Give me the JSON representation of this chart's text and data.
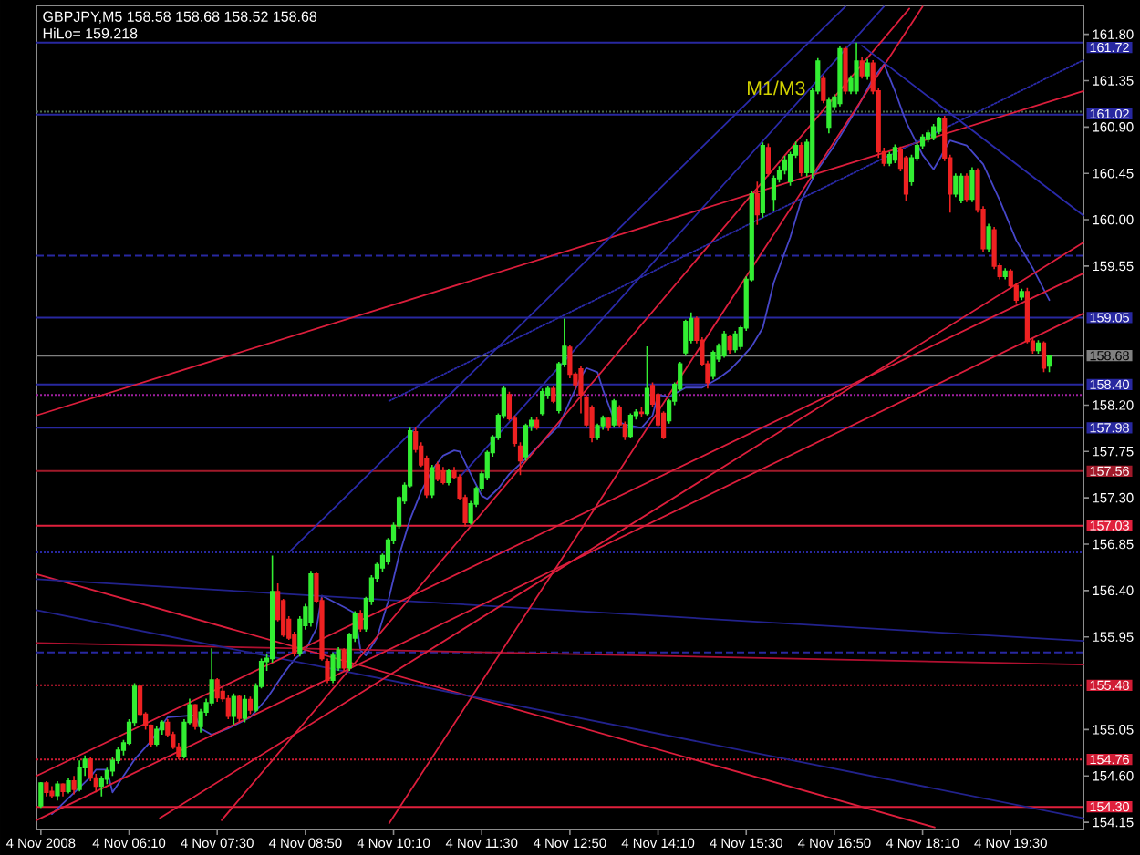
{
  "chart_data": {
    "type": "candlestick",
    "title": "GBPJPY,M5 158.58 158.68 158.52 158.68",
    "subtitle": "HiLo= 159.218",
    "annotations": [
      {
        "text": "M1/M3",
        "x": "2008-11-04T15:57",
        "y": 161.28
      }
    ],
    "xlim": [
      "2008-11-04T04:46",
      "2008-11-04T20:36"
    ],
    "ylim": [
      154.08,
      162.08
    ],
    "xticks": [
      {
        "value": "2008-11-04T04:50",
        "label": "4 Nov 2008"
      },
      {
        "value": "2008-11-04T06:10",
        "label": "4 Nov 06:10"
      },
      {
        "value": "2008-11-04T07:30",
        "label": "4 Nov 07:30"
      },
      {
        "value": "2008-11-04T08:50",
        "label": "4 Nov 08:50"
      },
      {
        "value": "2008-11-04T10:10",
        "label": "4 Nov 10:10"
      },
      {
        "value": "2008-11-04T11:30",
        "label": "4 Nov 11:30"
      },
      {
        "value": "2008-11-04T12:50",
        "label": "4 Nov 12:50"
      },
      {
        "value": "2008-11-04T14:10",
        "label": "4 Nov 14:10"
      },
      {
        "value": "2008-11-04T15:30",
        "label": "4 Nov 15:30"
      },
      {
        "value": "2008-11-04T16:50",
        "label": "4 Nov 16:50"
      },
      {
        "value": "2008-11-04T18:10",
        "label": "4 Nov 18:10"
      },
      {
        "value": "2008-11-04T19:30",
        "label": "4 Nov 19:30"
      }
    ],
    "yticks": [
      {
        "value": 161.8,
        "label": "161.80"
      },
      161.35,
      {
        "value": 160.9,
        "label": "160.90"
      },
      160.45,
      {
        "value": 160.0,
        "label": "160.00"
      },
      159.55,
      {
        "value": 158.2,
        "label": "158.20"
      },
      157.75,
      {
        "value": 157.3,
        "label": "157.30"
      },
      156.85,
      {
        "value": 156.4,
        "label": "156.40"
      },
      155.95,
      155.05,
      {
        "value": 154.6,
        "label": "154.60"
      },
      154.15
    ],
    "x": [
      "2008-11-04T04:50",
      "2008-11-04T04:55",
      "2008-11-04T05:00",
      "2008-11-04T05:05",
      "2008-11-04T05:10",
      "2008-11-04T05:15",
      "2008-11-04T05:20",
      "2008-11-04T05:25",
      "2008-11-04T05:30",
      "2008-11-04T05:35",
      "2008-11-04T05:40",
      "2008-11-04T05:45",
      "2008-11-04T05:50",
      "2008-11-04T05:55",
      "2008-11-04T06:00",
      "2008-11-04T06:05",
      "2008-11-04T06:10",
      "2008-11-04T06:15",
      "2008-11-04T06:20",
      "2008-11-04T06:25",
      "2008-11-04T06:30",
      "2008-11-04T06:35",
      "2008-11-04T06:40",
      "2008-11-04T06:45",
      "2008-11-04T06:50",
      "2008-11-04T06:55",
      "2008-11-04T07:00",
      "2008-11-04T07:05",
      "2008-11-04T07:10",
      "2008-11-04T07:15",
      "2008-11-04T07:20",
      "2008-11-04T07:25",
      "2008-11-04T07:30",
      "2008-11-04T07:35",
      "2008-11-04T07:40",
      "2008-11-04T07:45",
      "2008-11-04T07:50",
      "2008-11-04T07:55",
      "2008-11-04T08:00",
      "2008-11-04T08:05",
      "2008-11-04T08:10",
      "2008-11-04T08:15",
      "2008-11-04T08:20",
      "2008-11-04T08:25",
      "2008-11-04T08:30",
      "2008-11-04T08:35",
      "2008-11-04T08:40",
      "2008-11-04T08:45",
      "2008-11-04T08:50",
      "2008-11-04T08:55",
      "2008-11-04T09:00",
      "2008-11-04T09:05",
      "2008-11-04T09:10",
      "2008-11-04T09:15",
      "2008-11-04T09:20",
      "2008-11-04T09:25",
      "2008-11-04T09:30",
      "2008-11-04T09:35",
      "2008-11-04T09:40",
      "2008-11-04T09:45",
      "2008-11-04T09:50",
      "2008-11-04T09:55",
      "2008-11-04T10:00",
      "2008-11-04T10:05",
      "2008-11-04T10:10",
      "2008-11-04T10:15",
      "2008-11-04T10:20",
      "2008-11-04T10:25",
      "2008-11-04T10:30",
      "2008-11-04T10:35",
      "2008-11-04T10:40",
      "2008-11-04T10:45",
      "2008-11-04T10:50",
      "2008-11-04T10:55",
      "2008-11-04T11:00",
      "2008-11-04T11:05",
      "2008-11-04T11:10",
      "2008-11-04T11:15",
      "2008-11-04T11:20",
      "2008-11-04T11:25",
      "2008-11-04T11:30",
      "2008-11-04T11:35",
      "2008-11-04T11:40",
      "2008-11-04T11:45",
      "2008-11-04T11:50",
      "2008-11-04T11:55",
      "2008-11-04T12:00",
      "2008-11-04T12:05",
      "2008-11-04T12:10",
      "2008-11-04T12:15",
      "2008-11-04T12:20",
      "2008-11-04T12:25",
      "2008-11-04T12:30",
      "2008-11-04T12:35",
      "2008-11-04T12:40",
      "2008-11-04T12:45",
      "2008-11-04T12:50",
      "2008-11-04T12:55",
      "2008-11-04T13:00",
      "2008-11-04T13:05",
      "2008-11-04T13:10",
      "2008-11-04T13:15",
      "2008-11-04T13:20",
      "2008-11-04T13:25",
      "2008-11-04T13:30",
      "2008-11-04T13:35",
      "2008-11-04T13:40",
      "2008-11-04T13:45",
      "2008-11-04T13:50",
      "2008-11-04T13:55",
      "2008-11-04T14:00",
      "2008-11-04T14:05",
      "2008-11-04T14:10",
      "2008-11-04T14:15",
      "2008-11-04T14:20",
      "2008-11-04T14:25",
      "2008-11-04T14:30",
      "2008-11-04T14:35",
      "2008-11-04T14:40",
      "2008-11-04T14:45",
      "2008-11-04T14:50",
      "2008-11-04T14:55",
      "2008-11-04T15:00",
      "2008-11-04T15:05",
      "2008-11-04T15:10",
      "2008-11-04T15:15",
      "2008-11-04T15:20",
      "2008-11-04T15:25",
      "2008-11-04T15:30",
      "2008-11-04T15:35",
      "2008-11-04T15:40",
      "2008-11-04T15:45",
      "2008-11-04T15:50",
      "2008-11-04T15:55",
      "2008-11-04T16:00",
      "2008-11-04T16:05",
      "2008-11-04T16:10",
      "2008-11-04T16:15",
      "2008-11-04T16:20",
      "2008-11-04T16:25",
      "2008-11-04T16:30",
      "2008-11-04T16:35",
      "2008-11-04T16:40",
      "2008-11-04T16:45",
      "2008-11-04T16:50",
      "2008-11-04T16:55",
      "2008-11-04T17:00",
      "2008-11-04T17:05",
      "2008-11-04T17:10",
      "2008-11-04T17:15",
      "2008-11-04T17:20",
      "2008-11-04T17:25",
      "2008-11-04T17:30",
      "2008-11-04T17:35",
      "2008-11-04T17:40",
      "2008-11-04T17:45",
      "2008-11-04T17:50",
      "2008-11-04T17:55",
      "2008-11-04T18:00",
      "2008-11-04T18:05",
      "2008-11-04T18:10",
      "2008-11-04T18:15",
      "2008-11-04T18:20",
      "2008-11-04T18:25",
      "2008-11-04T18:30",
      "2008-11-04T18:35",
      "2008-11-04T18:40",
      "2008-11-04T18:45",
      "2008-11-04T18:50",
      "2008-11-04T18:55",
      "2008-11-04T19:00",
      "2008-11-04T19:05",
      "2008-11-04T19:10",
      "2008-11-04T19:15",
      "2008-11-04T19:20",
      "2008-11-04T19:25",
      "2008-11-04T19:30",
      "2008-11-04T19:35",
      "2008-11-04T19:40",
      "2008-11-04T19:45",
      "2008-11-04T19:50",
      "2008-11-04T19:55",
      "2008-11-04T20:00",
      "2008-11-04T20:05"
    ],
    "ohlc": [
      [
        154.31,
        154.54,
        154.29,
        154.53
      ],
      [
        154.53,
        154.55,
        154.4,
        154.44
      ],
      [
        154.45,
        154.5,
        154.38,
        154.41
      ],
      [
        154.41,
        154.55,
        154.36,
        154.52
      ],
      [
        154.52,
        154.53,
        154.4,
        154.45
      ],
      [
        154.45,
        154.58,
        154.43,
        154.55
      ],
      [
        154.55,
        154.6,
        154.42,
        154.47
      ],
      [
        154.47,
        154.75,
        154.45,
        154.68
      ],
      [
        154.68,
        154.8,
        154.6,
        154.76
      ],
      [
        154.76,
        154.78,
        154.55,
        154.58
      ],
      [
        154.58,
        154.62,
        154.44,
        154.5
      ],
      [
        154.5,
        154.6,
        154.4,
        154.57
      ],
      [
        154.57,
        154.68,
        154.52,
        154.65
      ],
      [
        154.65,
        154.78,
        154.6,
        154.75
      ],
      [
        154.75,
        154.88,
        154.72,
        154.85
      ],
      [
        154.85,
        154.95,
        154.8,
        154.92
      ],
      [
        154.92,
        155.15,
        154.9,
        155.12
      ],
      [
        155.12,
        155.5,
        155.08,
        155.47
      ],
      [
        155.47,
        155.48,
        155.18,
        155.2
      ],
      [
        155.2,
        155.22,
        155.05,
        155.09
      ],
      [
        155.09,
        155.1,
        154.88,
        154.91
      ],
      [
        154.91,
        155.08,
        154.89,
        155.05
      ],
      [
        155.05,
        155.14,
        155.0,
        155.12
      ],
      [
        155.12,
        155.15,
        154.98,
        155.0
      ],
      [
        155.0,
        155.03,
        154.86,
        154.88
      ],
      [
        154.88,
        154.92,
        154.76,
        154.79
      ],
      [
        154.79,
        155.15,
        154.77,
        155.12
      ],
      [
        155.12,
        155.35,
        155.1,
        155.29
      ],
      [
        155.29,
        155.3,
        155.05,
        155.08
      ],
      [
        155.08,
        155.25,
        155.02,
        155.22
      ],
      [
        155.22,
        155.35,
        155.18,
        155.31
      ],
      [
        155.31,
        155.84,
        155.28,
        155.53
      ],
      [
        155.53,
        155.55,
        155.32,
        155.36
      ],
      [
        155.42,
        155.46,
        155.32,
        155.35
      ],
      [
        155.35,
        155.38,
        155.15,
        155.18
      ],
      [
        155.18,
        155.4,
        155.1,
        155.37
      ],
      [
        155.37,
        155.39,
        155.12,
        155.16
      ],
      [
        155.16,
        155.38,
        155.12,
        155.34
      ],
      [
        155.34,
        155.37,
        155.2,
        155.24
      ],
      [
        155.24,
        155.5,
        155.22,
        155.47
      ],
      [
        155.47,
        155.74,
        155.45,
        155.71
      ],
      [
        155.71,
        155.78,
        155.62,
        155.74
      ],
      [
        155.74,
        156.74,
        155.7,
        156.39
      ],
      [
        156.39,
        156.47,
        156.1,
        156.12
      ],
      [
        156.3,
        156.32,
        155.95,
        155.97
      ],
      [
        156.12,
        156.15,
        155.92,
        155.94
      ],
      [
        155.97,
        156.0,
        155.76,
        155.79
      ],
      [
        155.79,
        156.15,
        155.76,
        156.12
      ],
      [
        156.06,
        156.27,
        156.02,
        156.24
      ],
      [
        156.09,
        156.59,
        156.05,
        156.56
      ],
      [
        156.56,
        156.58,
        156.28,
        156.3
      ],
      [
        156.3,
        156.33,
        155.72,
        155.74
      ],
      [
        155.71,
        155.74,
        155.5,
        155.53
      ],
      [
        155.53,
        155.8,
        155.5,
        155.77
      ],
      [
        155.65,
        155.85,
        155.62,
        155.82
      ],
      [
        155.82,
        155.84,
        155.62,
        155.65
      ],
      [
        155.65,
        155.99,
        155.62,
        155.97
      ],
      [
        155.94,
        156.2,
        155.9,
        156.18
      ],
      [
        156.18,
        156.21,
        156.0,
        156.03
      ],
      [
        156.03,
        156.34,
        156.0,
        156.32
      ],
      [
        156.3,
        156.55,
        156.26,
        156.52
      ],
      [
        156.52,
        156.67,
        156.48,
        156.65
      ],
      [
        156.62,
        156.76,
        156.58,
        156.74
      ],
      [
        156.68,
        156.91,
        156.65,
        156.89
      ],
      [
        156.89,
        157.06,
        156.85,
        157.03
      ],
      [
        157.03,
        157.32,
        157.0,
        157.3
      ],
      [
        157.27,
        157.45,
        157.24,
        157.42
      ],
      [
        157.42,
        157.98,
        157.4,
        157.95
      ],
      [
        157.94,
        157.99,
        157.74,
        157.77
      ],
      [
        157.8,
        157.84,
        157.6,
        157.62
      ],
      [
        157.68,
        157.71,
        157.3,
        157.33
      ],
      [
        157.33,
        157.62,
        157.3,
        157.59
      ],
      [
        157.62,
        157.65,
        157.46,
        157.48
      ],
      [
        157.56,
        157.6,
        157.43,
        157.45
      ],
      [
        157.45,
        157.58,
        157.42,
        157.56
      ],
      [
        157.56,
        157.6,
        157.48,
        157.5
      ],
      [
        157.5,
        157.53,
        157.28,
        157.3
      ],
      [
        157.3,
        157.33,
        157.02,
        157.06
      ],
      [
        157.06,
        157.27,
        157.04,
        157.24
      ],
      [
        157.24,
        157.41,
        157.21,
        157.39
      ],
      [
        157.39,
        157.56,
        157.36,
        157.53
      ],
      [
        157.5,
        157.76,
        157.47,
        157.74
      ],
      [
        157.74,
        157.91,
        157.7,
        157.89
      ],
      [
        157.89,
        158.12,
        157.86,
        158.1
      ],
      [
        158.1,
        158.38,
        158.07,
        158.36
      ],
      [
        158.3,
        158.33,
        158.05,
        158.07
      ],
      [
        158.07,
        158.1,
        157.8,
        157.83
      ],
      [
        157.8,
        157.84,
        157.52,
        157.66
      ],
      [
        157.7,
        158.02,
        157.66,
        158.0
      ],
      [
        158.0,
        158.08,
        157.95,
        158.05
      ],
      [
        158.05,
        158.08,
        157.96,
        157.98
      ],
      [
        158.12,
        158.36,
        158.1,
        158.33
      ],
      [
        158.3,
        158.38,
        158.26,
        158.36
      ],
      [
        158.36,
        158.38,
        158.22,
        158.24
      ],
      [
        158.15,
        158.62,
        158.12,
        158.6
      ],
      [
        158.6,
        159.04,
        158.57,
        158.77
      ],
      [
        158.76,
        158.78,
        158.46,
        158.5
      ],
      [
        158.5,
        158.52,
        158.35,
        158.4
      ],
      [
        158.55,
        158.58,
        158.12,
        158.3
      ],
      [
        158.27,
        158.3,
        157.98,
        158.01
      ],
      [
        158.18,
        158.2,
        157.84,
        157.89
      ],
      [
        157.89,
        158.02,
        157.86,
        158.0
      ],
      [
        158.0,
        158.1,
        157.96,
        158.07
      ],
      [
        158.07,
        158.09,
        157.95,
        157.98
      ],
      [
        158.01,
        158.26,
        157.98,
        158.24
      ],
      [
        158.18,
        158.2,
        157.98,
        158.01
      ],
      [
        158.01,
        158.04,
        157.86,
        157.9
      ],
      [
        157.9,
        158.12,
        157.88,
        158.1
      ],
      [
        158.1,
        158.16,
        158.06,
        158.13
      ],
      [
        158.13,
        158.18,
        158.08,
        158.12
      ],
      [
        158.12,
        158.77,
        158.1,
        158.36
      ],
      [
        158.39,
        158.42,
        158.18,
        158.21
      ],
      [
        158.3,
        158.32,
        157.98,
        158.01
      ],
      [
        158.12,
        158.14,
        157.87,
        157.89
      ],
      [
        158.05,
        158.26,
        158.02,
        158.24
      ],
      [
        158.24,
        158.42,
        158.2,
        158.4
      ],
      [
        158.36,
        158.62,
        158.34,
        158.6
      ],
      [
        158.71,
        159.03,
        158.68,
        159.01
      ],
      [
        158.83,
        159.1,
        158.8,
        159.04
      ],
      [
        159.04,
        159.06,
        158.8,
        158.83
      ],
      [
        158.83,
        158.86,
        158.58,
        158.6
      ],
      [
        158.6,
        158.63,
        158.36,
        158.42
      ],
      [
        158.48,
        158.73,
        158.45,
        158.71
      ],
      [
        158.65,
        158.8,
        158.62,
        158.77
      ],
      [
        158.68,
        158.92,
        158.66,
        158.89
      ],
      [
        158.86,
        158.88,
        158.7,
        158.74
      ],
      [
        158.74,
        158.92,
        158.71,
        158.89
      ],
      [
        158.77,
        158.97,
        158.74,
        158.95
      ],
      [
        158.95,
        159.45,
        158.92,
        159.42
      ],
      [
        159.42,
        160.28,
        159.4,
        160.25
      ],
      [
        160.25,
        160.37,
        159.95,
        160.05
      ],
      [
        160.07,
        160.75,
        160.02,
        160.72
      ],
      [
        160.7,
        160.74,
        160.42,
        160.45
      ],
      [
        160.2,
        160.43,
        160.08,
        160.4
      ],
      [
        160.4,
        160.52,
        160.36,
        160.48
      ],
      [
        160.48,
        160.62,
        160.44,
        160.58
      ],
      [
        160.37,
        160.66,
        160.33,
        160.63
      ],
      [
        160.63,
        160.76,
        160.6,
        160.72
      ],
      [
        160.72,
        160.75,
        160.42,
        160.46
      ],
      [
        160.46,
        160.78,
        160.42,
        160.75
      ],
      [
        160.46,
        161.28,
        160.4,
        161.25
      ],
      [
        161.25,
        161.57,
        161.22,
        161.54
      ],
      [
        161.37,
        161.4,
        161.13,
        161.16
      ],
      [
        160.9,
        161.19,
        160.84,
        161.16
      ],
      [
        161.1,
        161.22,
        161.06,
        161.19
      ],
      [
        161.13,
        161.69,
        161.1,
        161.66
      ],
      [
        161.66,
        161.68,
        161.22,
        161.25
      ],
      [
        161.25,
        161.4,
        161.22,
        161.37
      ],
      [
        161.25,
        161.72,
        161.22,
        161.54
      ],
      [
        161.54,
        161.58,
        161.37,
        161.4
      ],
      [
        161.4,
        161.56,
        161.36,
        161.52
      ],
      [
        161.52,
        161.55,
        161.22,
        161.25
      ],
      [
        161.25,
        161.28,
        160.6,
        160.66
      ],
      [
        160.66,
        160.7,
        160.52,
        160.55
      ],
      [
        160.55,
        160.66,
        160.52,
        160.63
      ],
      [
        160.58,
        160.73,
        160.55,
        160.7
      ],
      [
        160.68,
        160.71,
        160.47,
        160.5
      ],
      [
        160.6,
        160.62,
        160.18,
        160.25
      ],
      [
        160.37,
        160.63,
        160.33,
        160.6
      ],
      [
        160.6,
        160.75,
        160.57,
        160.72
      ],
      [
        160.72,
        160.83,
        160.69,
        160.8
      ],
      [
        160.78,
        160.87,
        160.75,
        160.84
      ],
      [
        160.8,
        160.93,
        160.77,
        160.9
      ],
      [
        160.86,
        161.0,
        160.83,
        160.98
      ],
      [
        160.98,
        161.01,
        160.57,
        160.6
      ],
      [
        160.6,
        160.63,
        160.07,
        160.25
      ],
      [
        160.25,
        160.45,
        160.22,
        160.42
      ],
      [
        160.19,
        160.45,
        160.16,
        160.42
      ],
      [
        160.42,
        160.45,
        160.17,
        160.2
      ],
      [
        160.2,
        160.51,
        160.17,
        160.48
      ],
      [
        160.48,
        160.5,
        160.07,
        160.1
      ],
      [
        160.1,
        160.13,
        159.69,
        159.72
      ],
      [
        159.72,
        159.96,
        159.69,
        159.93
      ],
      [
        159.9,
        159.93,
        159.52,
        159.55
      ],
      [
        159.55,
        159.58,
        159.42,
        159.45
      ],
      [
        159.45,
        159.53,
        159.42,
        159.5
      ],
      [
        159.5,
        159.52,
        159.33,
        159.36
      ],
      [
        159.36,
        159.38,
        159.19,
        159.22
      ],
      [
        159.25,
        159.33,
        159.22,
        159.3
      ],
      [
        159.3,
        159.34,
        158.8,
        158.82
      ],
      [
        158.82,
        158.85,
        158.7,
        158.73
      ],
      [
        158.73,
        158.83,
        158.7,
        158.8
      ],
      [
        158.8,
        158.82,
        158.52,
        158.56
      ],
      [
        158.58,
        158.68,
        158.52,
        158.68
      ]
    ],
    "colors": [
      "#33ee33",
      "#ee2222",
      "#ee2222",
      "#33ee33",
      "#ee2222",
      "#33ee33",
      "#ee2222",
      "#33ee33",
      "#33ee33",
      "#ee2222",
      "#ee2222",
      "#33ee33",
      "#33ee33",
      "#33ee33",
      "#33ee33",
      "#33ee33",
      "#33ee33",
      "#33ee33",
      "#ee2222",
      "#ee2222",
      "#ee2222",
      "#33ee33",
      "#33ee33",
      "#ee2222",
      "#ee2222",
      "#ee2222",
      "#33ee33",
      "#33ee33",
      "#ee2222",
      "#33ee33",
      "#33ee33",
      "#33ee33",
      "#ee2222",
      "#ee2222",
      "#ee2222",
      "#33ee33",
      "#ee2222",
      "#33ee33",
      "#ee2222",
      "#33ee33",
      "#33ee33",
      "#33ee33",
      "#33ee33",
      "#ee2222",
      "#ee2222",
      "#ee2222",
      "#ee2222",
      "#33ee33",
      "#33ee33",
      "#33ee33",
      "#ee2222",
      "#ee2222",
      "#ee2222",
      "#33ee33",
      "#33ee33",
      "#ee2222",
      "#33ee33",
      "#33ee33",
      "#ee2222",
      "#33ee33",
      "#33ee33",
      "#33ee33",
      "#33ee33",
      "#33ee33",
      "#33ee33",
      "#33ee33",
      "#33ee33",
      "#33ee33",
      "#ee2222",
      "#ee2222",
      "#ee2222",
      "#33ee33",
      "#ee2222",
      "#ee2222",
      "#33ee33",
      "#ee2222",
      "#ee2222",
      "#ee2222",
      "#33ee33",
      "#33ee33",
      "#33ee33",
      "#33ee33",
      "#33ee33",
      "#33ee33",
      "#33ee33",
      "#ee2222",
      "#ee2222",
      "#ee2222",
      "#33ee33",
      "#33ee33",
      "#ee2222",
      "#33ee33",
      "#33ee33",
      "#ee2222",
      "#33ee33",
      "#33ee33",
      "#ee2222",
      "#ee2222",
      "#ee2222",
      "#ee2222",
      "#ee2222",
      "#33ee33",
      "#33ee33",
      "#ee2222",
      "#33ee33",
      "#ee2222",
      "#ee2222",
      "#33ee33",
      "#33ee33",
      "#ee2222",
      "#33ee33",
      "#ee2222",
      "#ee2222",
      "#ee2222",
      "#33ee33",
      "#33ee33",
      "#33ee33",
      "#33ee33",
      "#33ee33",
      "#ee2222",
      "#ee2222",
      "#ee2222",
      "#33ee33",
      "#33ee33",
      "#33ee33",
      "#ee2222",
      "#33ee33",
      "#33ee33",
      "#33ee33",
      "#33ee33",
      "#ee2222",
      "#33ee33",
      "#ee2222",
      "#33ee33",
      "#33ee33",
      "#33ee33",
      "#33ee33",
      "#33ee33",
      "#ee2222",
      "#33ee33",
      "#33ee33",
      "#33ee33",
      "#ee2222",
      "#33ee33",
      "#33ee33",
      "#33ee33",
      "#ee2222",
      "#33ee33",
      "#33ee33",
      "#ee2222",
      "#33ee33",
      "#ee2222",
      "#ee2222",
      "#ee2222",
      "#33ee33",
      "#33ee33",
      "#ee2222",
      "#ee2222",
      "#33ee33",
      "#33ee33",
      "#33ee33",
      "#33ee33",
      "#33ee33",
      "#33ee33",
      "#ee2222",
      "#ee2222",
      "#33ee33",
      "#33ee33",
      "#ee2222",
      "#33ee33",
      "#ee2222",
      "#ee2222",
      "#33ee33",
      "#ee2222",
      "#ee2222",
      "#33ee33",
      "#ee2222",
      "#ee2222",
      "#33ee33",
      "#ee2222",
      "#ee2222",
      "#33ee33",
      "#ee2222",
      "#33ee33"
    ],
    "series": [
      {
        "type": "line",
        "color": "#4646c8",
        "x": [
          "2008-11-04T05:00",
          "2008-11-04T05:35",
          "2008-11-04T05:40",
          "2008-11-04T05:50",
          "2008-11-04T05:55",
          "2008-11-04T06:15",
          "2008-11-04T06:30",
          "2008-11-04T06:45",
          "2008-11-04T07:10",
          "2008-11-04T07:15",
          "2008-11-04T07:25",
          "2008-11-04T07:40",
          "2008-11-04T08:00",
          "2008-11-04T08:15",
          "2008-11-04T08:30",
          "2008-11-04T08:40",
          "2008-11-04T08:50",
          "2008-11-04T09:00",
          "2008-11-04T09:05",
          "2008-11-04T09:25",
          "2008-11-04T09:35",
          "2008-11-04T09:40",
          "2008-11-04T09:45",
          "2008-11-04T09:55",
          "2008-11-04T10:05",
          "2008-11-04T10:15",
          "2008-11-04T10:25",
          "2008-11-04T10:35",
          "2008-11-04T10:45",
          "2008-11-04T10:55",
          "2008-11-04T11:05",
          "2008-11-04T11:10",
          "2008-11-04T11:20",
          "2008-11-04T11:30",
          "2008-11-04T11:35",
          "2008-11-04T11:45",
          "2008-11-04T11:55",
          "2008-11-04T12:10",
          "2008-11-04T12:25",
          "2008-11-04T12:40",
          "2008-11-04T12:50",
          "2008-11-04T13:00",
          "2008-11-04T13:05",
          "2008-11-04T13:15",
          "2008-11-04T13:20",
          "2008-11-04T13:30",
          "2008-11-04T13:40",
          "2008-11-04T13:55",
          "2008-11-04T14:05",
          "2008-11-04T14:10",
          "2008-11-04T14:20",
          "2008-11-04T14:35",
          "2008-11-04T14:50",
          "2008-11-04T15:05",
          "2008-11-04T15:15",
          "2008-11-04T15:25",
          "2008-11-04T15:35",
          "2008-11-04T15:45",
          "2008-11-04T15:55",
          "2008-11-04T16:10",
          "2008-11-04T16:20",
          "2008-11-04T16:35",
          "2008-11-04T16:50",
          "2008-11-04T17:10",
          "2008-11-04T17:25",
          "2008-11-04T17:35",
          "2008-11-04T17:45",
          "2008-11-04T17:55",
          "2008-11-04T18:10",
          "2008-11-04T18:20",
          "2008-11-04T18:25",
          "2008-11-04T18:30",
          "2008-11-04T18:35",
          "2008-11-04T18:50",
          "2008-11-04T19:05",
          "2008-11-04T19:20",
          "2008-11-04T19:35",
          "2008-11-04T19:50",
          "2008-11-04T20:05"
        ],
        "values": [
          154.23,
          154.59,
          154.66,
          154.66,
          154.44,
          154.76,
          154.94,
          155.17,
          155.19,
          155.06,
          155.0,
          155.06,
          155.17,
          155.35,
          155.59,
          155.73,
          155.82,
          156.03,
          156.35,
          156.24,
          156.18,
          155.82,
          155.77,
          155.94,
          156.29,
          156.74,
          157.09,
          157.36,
          157.57,
          157.71,
          157.76,
          157.75,
          157.53,
          157.32,
          157.29,
          157.39,
          157.53,
          157.68,
          157.84,
          158.0,
          158.24,
          158.47,
          158.56,
          158.52,
          158.35,
          158.06,
          158.01,
          157.98,
          158.1,
          158.3,
          158.28,
          158.37,
          158.37,
          158.46,
          158.54,
          158.65,
          158.77,
          158.95,
          159.39,
          159.83,
          160.19,
          160.49,
          160.72,
          161.07,
          161.37,
          161.51,
          161.25,
          160.95,
          160.63,
          160.49,
          160.58,
          160.68,
          160.77,
          160.72,
          160.54,
          160.19,
          159.8,
          159.53,
          159.22
        ]
      },
      {
        "type": "line",
        "color": "#dc1e3c",
        "x": [
          "2008-11-04T04:46",
          "2008-11-04T20:36"
        ],
        "values": [
          158.1,
          161.25
        ]
      },
      {
        "type": "line",
        "color": "#dc1e3c",
        "x": [
          "2008-11-04T04:46",
          "2008-11-04T18:21"
        ],
        "values": [
          156.56,
          154.1
        ]
      },
      {
        "type": "line",
        "color": "#22228c",
        "x": [
          "2008-11-04T04:46",
          "2008-11-04T20:36"
        ],
        "values": [
          156.51,
          155.91
        ]
      },
      {
        "type": "line",
        "color": "#b01030",
        "x": [
          "2008-11-04T04:46",
          "2008-11-04T20:36"
        ],
        "values": [
          155.89,
          155.68
        ]
      },
      {
        "type": "line",
        "color": "#22228c",
        "x": [
          "2008-11-04T04:46",
          "2008-11-04T20:36"
        ],
        "values": [
          156.21,
          154.19
        ]
      },
      {
        "type": "line",
        "color": "#dc1e3c",
        "x": [
          "2008-11-04T04:46",
          "2008-11-04T20:36"
        ],
        "values": [
          154.17,
          159.09
        ]
      },
      {
        "type": "line",
        "color": "#dc1e3c",
        "x": [
          "2008-11-04T04:46",
          "2008-11-04T20:36"
        ],
        "values": [
          154.6,
          159.48
        ]
      },
      {
        "type": "line",
        "color": "#dc1e3c",
        "x": [
          "2008-11-04T06:38",
          "2008-11-04T20:36"
        ],
        "values": [
          154.19,
          159.78
        ]
      },
      {
        "type": "line",
        "color": "#dc1e3c",
        "x": [
          "2008-11-04T07:34",
          "2008-11-04T17:58"
        ],
        "values": [
          154.17,
          162.05
        ]
      },
      {
        "type": "line",
        "color": "#dc1e3c",
        "x": [
          "2008-11-04T10:06",
          "2008-11-04T18:10"
        ],
        "values": [
          154.14,
          162.07
        ]
      },
      {
        "type": "line",
        "color": "#2a2aa8",
        "x": [
          "2008-11-04T08:35",
          "2008-11-04T17:00"
        ],
        "values": [
          156.77,
          162.07
        ]
      },
      {
        "type": "line",
        "color": "#2a2aa8",
        "x": [
          "2008-11-04T11:10",
          "2008-11-04T17:35"
        ],
        "values": [
          157.5,
          162.07
        ]
      },
      {
        "type": "line",
        "color": "#2a2aa8",
        "line_style": "dotted",
        "x": [
          "2008-11-04T10:06",
          "2008-11-04T20:36"
        ],
        "values": [
          158.24,
          161.55
        ]
      },
      {
        "type": "line",
        "color": "#2a2aa8",
        "x": [
          "2008-11-04T17:15",
          "2008-11-04T20:36"
        ],
        "values": [
          161.69,
          160.04
        ]
      }
    ],
    "ref_lines": [
      {
        "axis": "y",
        "value": 161.72,
        "label": "161.72",
        "color": "#2828a0"
      },
      {
        "axis": "y",
        "value": 161.05,
        "color": "#4e6e4e",
        "line_style": "dotted"
      },
      {
        "axis": "y",
        "value": 161.02,
        "label": "161.02",
        "color": "#2828a0"
      },
      {
        "axis": "y",
        "value": 159.65,
        "color": "#2828a0",
        "line_style": "dashed"
      },
      {
        "axis": "y",
        "value": 159.05,
        "label": "159.05",
        "color": "#2828a0"
      },
      {
        "axis": "y",
        "value": 158.68,
        "label": "158.68",
        "color": "#808080"
      },
      {
        "axis": "y",
        "value": 158.4,
        "label": "158.40",
        "color": "#2828a0"
      },
      {
        "axis": "y",
        "value": 158.3,
        "color": "#a020a0",
        "line_style": "dotted"
      },
      {
        "axis": "y",
        "value": 157.98,
        "label": "157.98",
        "color": "#2828a0"
      },
      {
        "axis": "y",
        "value": 157.56,
        "label": "157.56",
        "color": "#a01a2a"
      },
      {
        "axis": "y",
        "value": 157.03,
        "label": "157.03",
        "color": "#e0203c"
      },
      {
        "axis": "y",
        "value": 156.77,
        "color": "#2828a0",
        "line_style": "dotted"
      },
      {
        "axis": "y",
        "value": 155.8,
        "color": "#2828a0",
        "line_style": "dashed"
      },
      {
        "axis": "y",
        "value": 155.48,
        "label": "155.48",
        "color": "#d01c34",
        "line_style": "dotted"
      },
      {
        "axis": "y",
        "value": 154.76,
        "label": "154.76",
        "color": "#d01c34",
        "line_style": "dotted"
      },
      {
        "axis": "y",
        "value": 154.3,
        "label": "154.30",
        "color": "#e0203c"
      }
    ]
  }
}
